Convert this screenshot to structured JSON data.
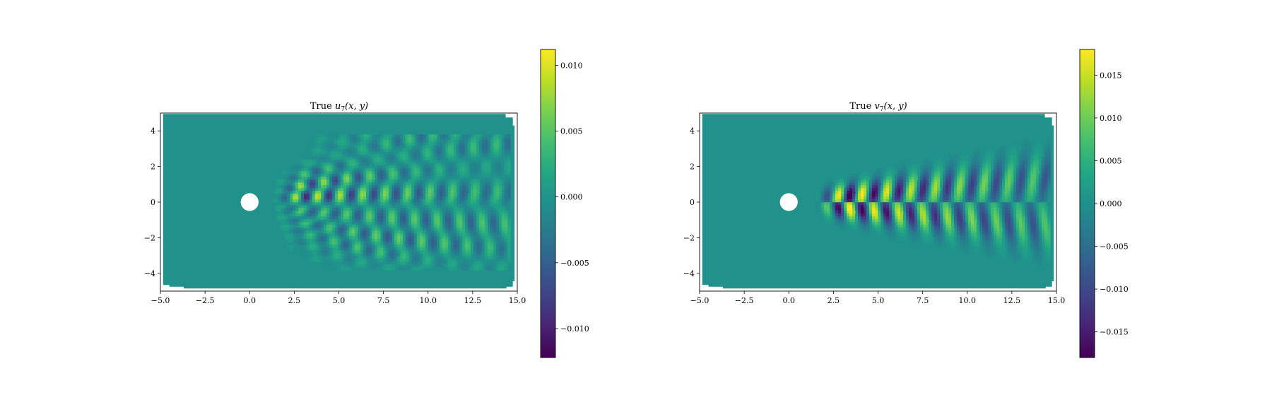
{
  "figure": {
    "background": "#ffffff",
    "colormap": "viridis",
    "field_background_color": "#21918c"
  },
  "chart_data": [
    {
      "type": "heatmap",
      "title_prefix": "True ",
      "title_symbol": "u",
      "title_subscript": "7",
      "title_args": "(x, y)",
      "xlim": [
        -5.0,
        15.0
      ],
      "ylim": [
        -5.0,
        5.0
      ],
      "xticks": [
        -5.0,
        -2.5,
        0.0,
        2.5,
        5.0,
        7.5,
        10.0,
        12.5,
        15.0
      ],
      "xtick_labels": [
        "−5.0",
        "−2.5",
        "0.0",
        "2.5",
        "5.0",
        "7.5",
        "10.0",
        "12.5",
        "15.0"
      ],
      "yticks": [
        -4,
        -2,
        0,
        2,
        4
      ],
      "ytick_labels": [
        "−4",
        "−2",
        "0",
        "2",
        "4"
      ],
      "obstacle": {
        "shape": "circle",
        "center": [
          0.0,
          0.0
        ],
        "radius": 0.5
      },
      "field": {
        "x_start": 1.3,
        "x_end": 14.6,
        "pattern": "shedding-u",
        "spread_slope": 0.33,
        "spread_base": 0.15,
        "wavelength": 1.25,
        "amplitude": 1.0
      },
      "colorbar": {
        "vmin": -0.0122,
        "vmax": 0.0112,
        "ticks": [
          -0.01,
          -0.005,
          0.0,
          0.005,
          0.01
        ],
        "tick_labels": [
          "−0.010",
          "−0.005",
          "0.000",
          "0.005",
          "0.010"
        ]
      }
    },
    {
      "type": "heatmap",
      "title_prefix": "True ",
      "title_symbol": "v",
      "title_subscript": "7",
      "title_args": "(x, y)",
      "xlim": [
        -5.0,
        15.0
      ],
      "ylim": [
        -5.0,
        5.0
      ],
      "xticks": [
        -5.0,
        -2.5,
        0.0,
        2.5,
        5.0,
        7.5,
        10.0,
        12.5,
        15.0
      ],
      "xtick_labels": [
        "−5.0",
        "−2.5",
        "0.0",
        "2.5",
        "5.0",
        "7.5",
        "10.0",
        "12.5",
        "15.0"
      ],
      "yticks": [
        -4,
        -2,
        0,
        2,
        4
      ],
      "ytick_labels": [
        "−4",
        "−2",
        "0",
        "2",
        "4"
      ],
      "obstacle": {
        "shape": "circle",
        "center": [
          0.0,
          0.0
        ],
        "radius": 0.5
      },
      "field": {
        "x_start": 1.5,
        "x_end": 14.6,
        "pattern": "shedding-v",
        "spread_slope": 0.12,
        "spread_base": 0.2,
        "wavelength": 1.35,
        "amplitude": 1.0
      },
      "colorbar": {
        "vmin": -0.018,
        "vmax": 0.018,
        "ticks": [
          -0.015,
          -0.01,
          -0.005,
          0.0,
          0.005,
          0.01,
          0.015
        ],
        "tick_labels": [
          "−0.015",
          "−0.010",
          "−0.005",
          "0.000",
          "0.005",
          "0.010",
          "0.015"
        ]
      }
    }
  ]
}
